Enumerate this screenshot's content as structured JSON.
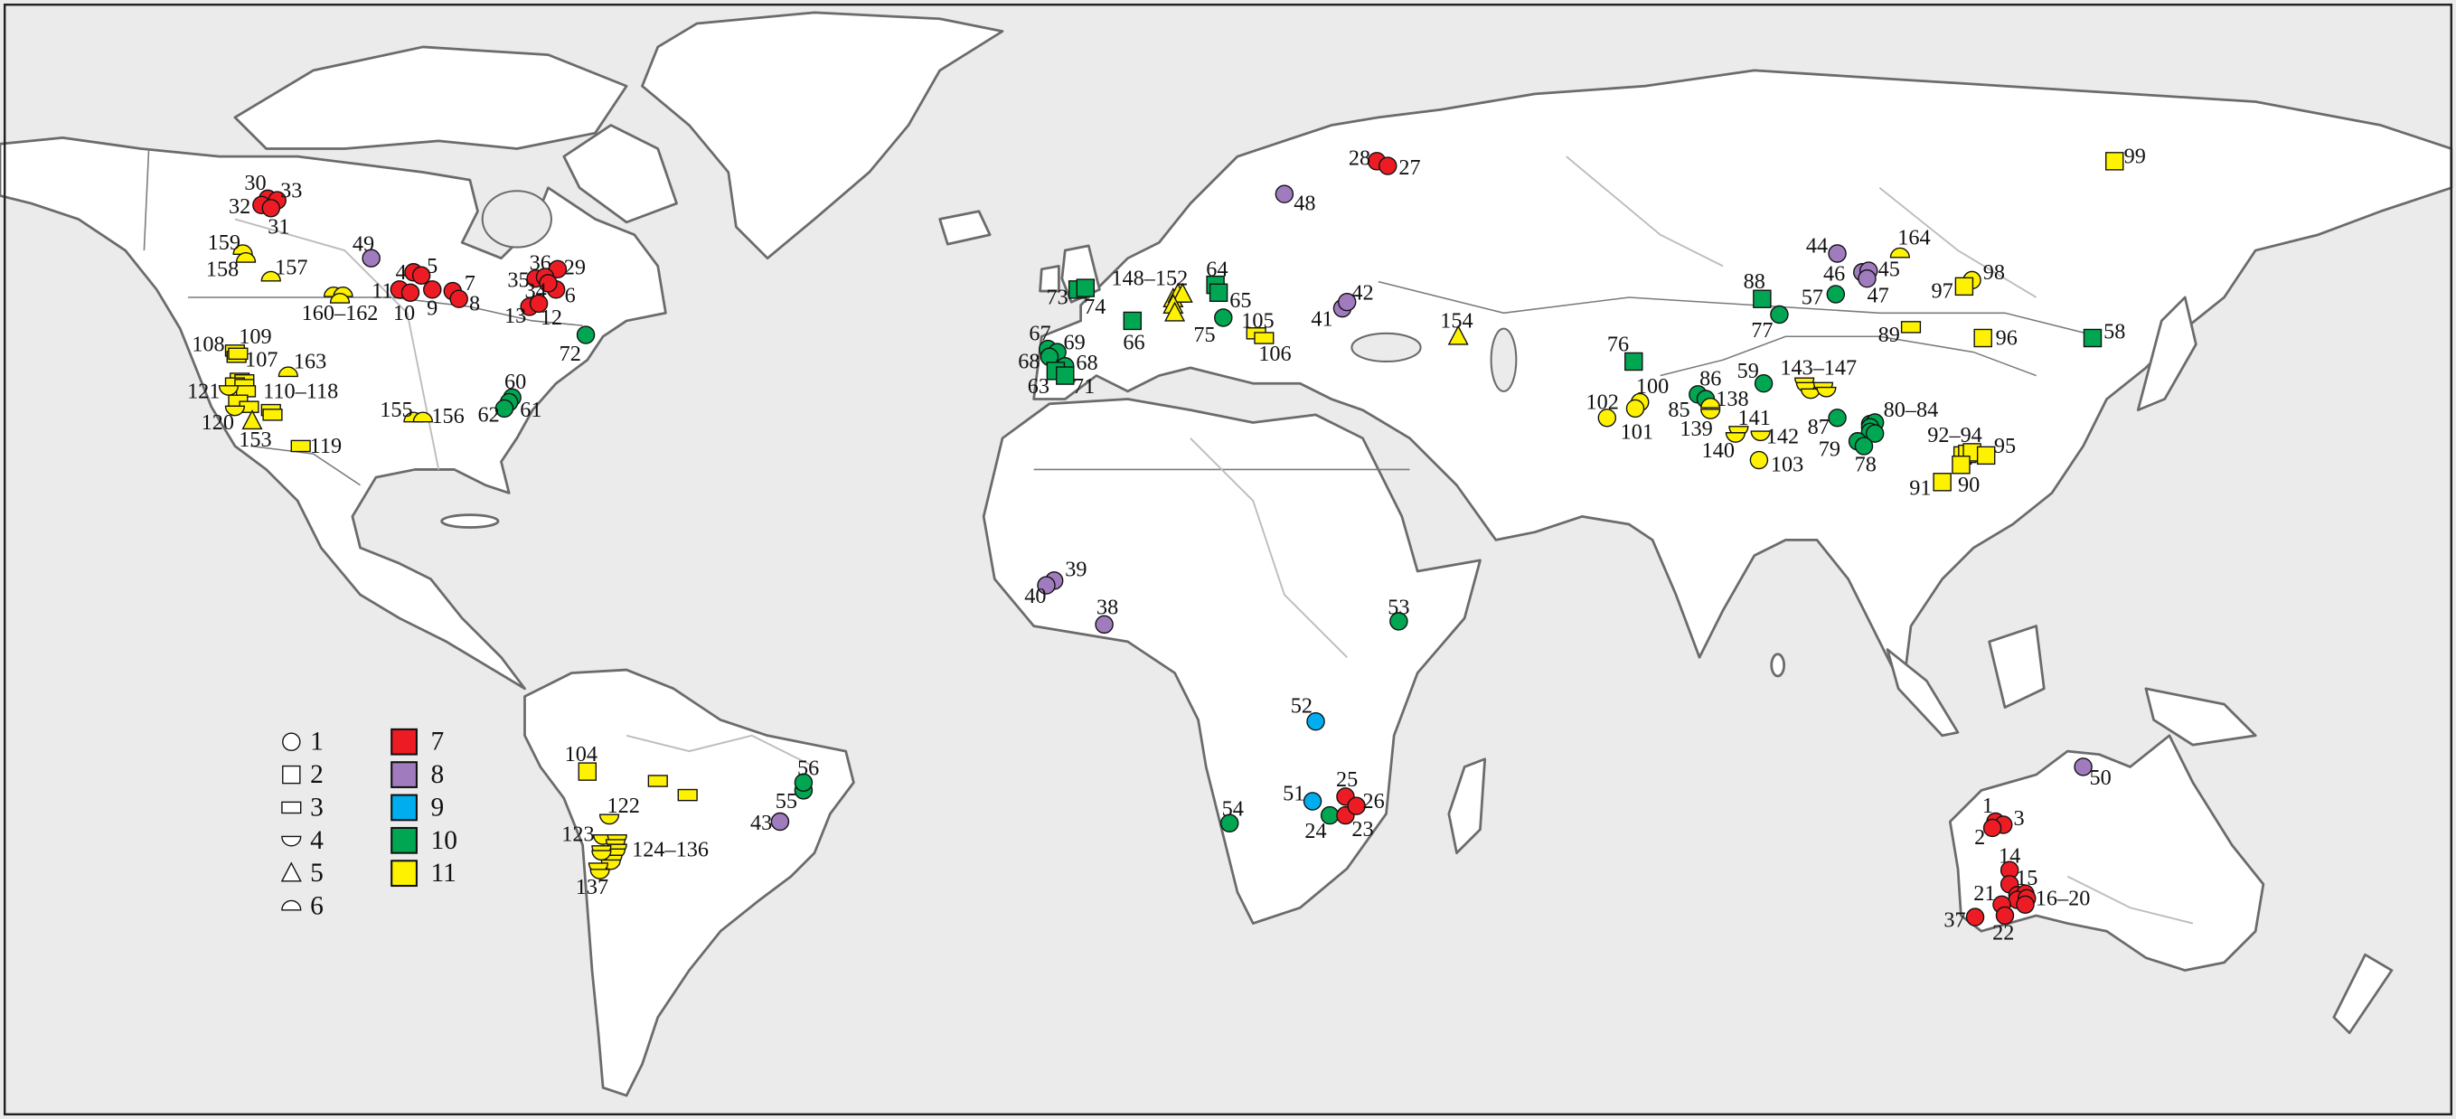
{
  "legend": {
    "symbols": [
      {
        "label": "1",
        "shape": "circle"
      },
      {
        "label": "2",
        "shape": "square"
      },
      {
        "label": "3",
        "shape": "flat-rectangle"
      },
      {
        "label": "4",
        "shape": "half-disc-down"
      },
      {
        "label": "5",
        "shape": "triangle"
      },
      {
        "label": "6",
        "shape": "half-disc-up"
      }
    ],
    "categories": [
      {
        "label": "7",
        "color": "#ed1c24"
      },
      {
        "label": "8",
        "color": "#a07cbf"
      },
      {
        "label": "9",
        "color": "#00aeef"
      },
      {
        "label": "10",
        "color": "#00a651"
      },
      {
        "label": "11",
        "color": "#fff200"
      }
    ]
  },
  "colors": {
    "ocean": "#ebebeb",
    "land": "#ffffff",
    "coastline": "#6b6b6b"
  },
  "sites": [
    {
      "label": "30",
      "symbol": 1,
      "category": 7
    },
    {
      "label": "33",
      "symbol": 1,
      "category": 7
    },
    {
      "label": "32",
      "symbol": 1,
      "category": 7
    },
    {
      "label": "31",
      "symbol": 1,
      "category": 7
    },
    {
      "label": "49",
      "symbol": 1,
      "category": 8
    },
    {
      "label": "159",
      "symbol": 6,
      "category": 11
    },
    {
      "label": "158",
      "symbol": 6,
      "category": 11
    },
    {
      "label": "157",
      "symbol": 6,
      "category": 11
    },
    {
      "label": "160–162",
      "symbol": 6,
      "category": 11
    },
    {
      "label": "4",
      "symbol": 1,
      "category": 7
    },
    {
      "label": "5",
      "symbol": 1,
      "category": 7
    },
    {
      "label": "11",
      "symbol": 1,
      "category": 7
    },
    {
      "label": "10",
      "symbol": 1,
      "category": 7
    },
    {
      "label": "9",
      "symbol": 1,
      "category": 7
    },
    {
      "label": "7",
      "symbol": 1,
      "category": 7
    },
    {
      "label": "8",
      "symbol": 1,
      "category": 7
    },
    {
      "label": "36",
      "symbol": 1,
      "category": 7
    },
    {
      "label": "29",
      "symbol": 1,
      "category": 7
    },
    {
      "label": "35",
      "symbol": 1,
      "category": 7
    },
    {
      "label": "6",
      "symbol": 1,
      "category": 7
    },
    {
      "label": "34",
      "symbol": 1,
      "category": 7
    },
    {
      "label": "13",
      "symbol": 1,
      "category": 7
    },
    {
      "label": "12",
      "symbol": 1,
      "category": 7
    },
    {
      "label": "72",
      "symbol": 1,
      "category": 10
    },
    {
      "label": "60",
      "symbol": 1,
      "category": 10
    },
    {
      "label": "61",
      "symbol": 1,
      "category": 10
    },
    {
      "label": "62",
      "symbol": 1,
      "category": 10
    },
    {
      "label": "108",
      "symbol": 3,
      "category": 11
    },
    {
      "label": "109",
      "symbol": 3,
      "category": 11
    },
    {
      "label": "107",
      "symbol": 3,
      "category": 11
    },
    {
      "label": "163",
      "symbol": 6,
      "category": 11
    },
    {
      "label": "110–118",
      "symbol": 3,
      "category": 11
    },
    {
      "label": "121",
      "symbol": 4,
      "category": 11
    },
    {
      "label": "120",
      "symbol": 4,
      "category": 11
    },
    {
      "label": "153",
      "symbol": 5,
      "category": 11
    },
    {
      "label": "119",
      "symbol": 3,
      "category": 11
    },
    {
      "label": "155",
      "symbol": 6,
      "category": 11
    },
    {
      "label": "156",
      "symbol": 6,
      "category": 11
    },
    {
      "label": "104",
      "symbol": 2,
      "category": 11
    },
    {
      "label": "",
      "symbol": 3,
      "category": 11
    },
    {
      "label": "122",
      "symbol": 4,
      "category": 11
    },
    {
      "label": "123",
      "symbol": 4,
      "category": 11
    },
    {
      "label": "124–136",
      "symbol": 4,
      "category": 11
    },
    {
      "label": "137",
      "symbol": 4,
      "category": 11
    },
    {
      "label": "43",
      "symbol": 1,
      "category": 8
    },
    {
      "label": "55",
      "symbol": 1,
      "category": 10
    },
    {
      "label": "56",
      "symbol": 1,
      "category": 10
    },
    {
      "label": "73",
      "symbol": 2,
      "category": 10
    },
    {
      "label": "74",
      "symbol": 2,
      "category": 10
    },
    {
      "label": "66",
      "symbol": 2,
      "category": 10
    },
    {
      "label": "148–152",
      "symbol": 5,
      "category": 11
    },
    {
      "label": "64",
      "symbol": 2,
      "category": 10
    },
    {
      "label": "65",
      "symbol": 2,
      "category": 10
    },
    {
      "label": "75",
      "symbol": 1,
      "category": 10
    },
    {
      "label": "105",
      "symbol": 3,
      "category": 11
    },
    {
      "label": "106",
      "symbol": 3,
      "category": 11
    },
    {
      "label": "41",
      "symbol": 1,
      "category": 8
    },
    {
      "label": "42",
      "symbol": 1,
      "category": 8
    },
    {
      "label": "154",
      "symbol": 5,
      "category": 11
    },
    {
      "label": "67",
      "symbol": 1,
      "category": 10
    },
    {
      "label": "69",
      "symbol": 1,
      "category": 10
    },
    {
      "label": "68",
      "symbol": 1,
      "category": 10
    },
    {
      "label": "68",
      "symbol": 1,
      "category": 10
    },
    {
      "label": "63",
      "symbol": 2,
      "category": 10
    },
    {
      "label": "71",
      "symbol": 2,
      "category": 10
    },
    {
      "label": "28",
      "symbol": 1,
      "category": 7
    },
    {
      "label": "27",
      "symbol": 1,
      "category": 7
    },
    {
      "label": "48",
      "symbol": 1,
      "category": 8
    },
    {
      "label": "39",
      "symbol": 1,
      "category": 8
    },
    {
      "label": "40",
      "symbol": 1,
      "category": 8
    },
    {
      "label": "38",
      "symbol": 1,
      "category": 8
    },
    {
      "label": "53",
      "symbol": 1,
      "category": 10
    },
    {
      "label": "52",
      "symbol": 1,
      "category": 9
    },
    {
      "label": "54",
      "symbol": 1,
      "category": 10
    },
    {
      "label": "51",
      "symbol": 1,
      "category": 9
    },
    {
      "label": "24",
      "symbol": 1,
      "category": 10
    },
    {
      "label": "23",
      "symbol": 1,
      "category": 7
    },
    {
      "label": "25",
      "symbol": 1,
      "category": 7
    },
    {
      "label": "26",
      "symbol": 1,
      "category": 7
    },
    {
      "label": "44",
      "symbol": 1,
      "category": 8
    },
    {
      "label": "46",
      "symbol": 1,
      "category": 8
    },
    {
      "label": "45",
      "symbol": 1,
      "category": 8
    },
    {
      "label": "47",
      "symbol": 1,
      "category": 8
    },
    {
      "label": "57",
      "symbol": 1,
      "category": 10
    },
    {
      "label": "164",
      "symbol": 6,
      "category": 11
    },
    {
      "label": "88",
      "symbol": 2,
      "category": 10
    },
    {
      "label": "77",
      "symbol": 1,
      "category": 10
    },
    {
      "label": "98",
      "symbol": 1,
      "category": 11
    },
    {
      "label": "97",
      "symbol": 2,
      "category": 11
    },
    {
      "label": "89",
      "symbol": 3,
      "category": 11
    },
    {
      "label": "96",
      "symbol": 2,
      "category": 11
    },
    {
      "label": "58",
      "symbol": 2,
      "category": 10
    },
    {
      "label": "99",
      "symbol": 2,
      "category": 11
    },
    {
      "label": "76",
      "symbol": 2,
      "category": 10
    },
    {
      "label": "100",
      "symbol": 1,
      "category": 11
    },
    {
      "label": "101",
      "symbol": 1,
      "category": 11
    },
    {
      "label": "102",
      "symbol": 1,
      "category": 11
    },
    {
      "label": "86",
      "symbol": 1,
      "category": 10
    },
    {
      "label": "85",
      "symbol": 1,
      "category": 10
    },
    {
      "label": "138",
      "symbol": 6,
      "category": 11
    },
    {
      "label": "139",
      "symbol": 4,
      "category": 11
    },
    {
      "label": "59",
      "symbol": 1,
      "category": 10
    },
    {
      "label": "143–147",
      "symbol": 4,
      "category": 11
    },
    {
      "label": "141",
      "symbol": 4,
      "category": 11
    },
    {
      "label": "140",
      "symbol": 4,
      "category": 11
    },
    {
      "label": "142",
      "symbol": 4,
      "category": 11
    },
    {
      "label": "103",
      "symbol": 1,
      "category": 11
    },
    {
      "label": "87",
      "symbol": 1,
      "category": 10
    },
    {
      "label": "80–84",
      "symbol": 1,
      "category": 10
    },
    {
      "label": "79",
      "symbol": 1,
      "category": 10
    },
    {
      "label": "78",
      "symbol": 1,
      "category": 10
    },
    {
      "label": "92–94",
      "symbol": 2,
      "category": 11
    },
    {
      "label": "95",
      "symbol": 2,
      "category": 11
    },
    {
      "label": "90",
      "symbol": 2,
      "category": 11
    },
    {
      "label": "91",
      "symbol": 2,
      "category": 11
    },
    {
      "label": "50",
      "symbol": 1,
      "category": 8
    },
    {
      "label": "1",
      "symbol": 1,
      "category": 7
    },
    {
      "label": "3",
      "symbol": 1,
      "category": 7
    },
    {
      "label": "2",
      "symbol": 1,
      "category": 7
    },
    {
      "label": "14",
      "symbol": 1,
      "category": 7
    },
    {
      "label": "15",
      "symbol": 1,
      "category": 7
    },
    {
      "label": "16–20",
      "symbol": 1,
      "category": 7
    },
    {
      "label": "21",
      "symbol": 1,
      "category": 7
    },
    {
      "label": "22",
      "symbol": 1,
      "category": 7
    },
    {
      "label": "37",
      "symbol": 1,
      "category": 7
    }
  ]
}
